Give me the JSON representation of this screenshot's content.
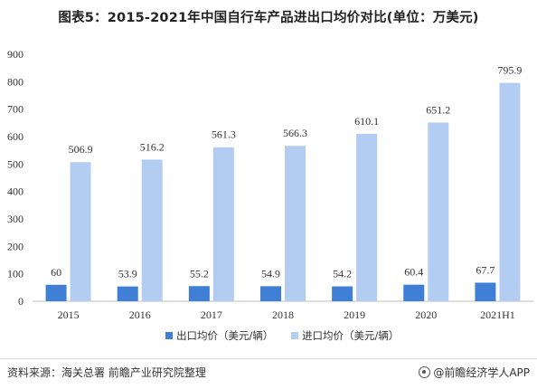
{
  "title": "图表5：2015-2021年中国自行车产品进出口均价对比(单位：万美元)",
  "footer": {
    "source": "资料来源：海关总署 前瞻产业研究院整理",
    "brand": "@前瞻经济学人APP"
  },
  "colors": {
    "export": "#3f7fd6",
    "import": "#b3cdf2",
    "axis": "#bfbfbf"
  },
  "chart_data": {
    "type": "bar",
    "categories": [
      "2015",
      "2016",
      "2017",
      "2018",
      "2019",
      "2020",
      "2021H1"
    ],
    "series": [
      {
        "name": "出口均价（美元/辆）",
        "values": [
          60,
          53.9,
          55.2,
          54.9,
          54.2,
          60.4,
          67.7
        ],
        "labels": [
          "60",
          "53.9",
          "55.2",
          "54.9",
          "54.2",
          "60.4",
          "67.7"
        ]
      },
      {
        "name": "进口均价（美元/辆）",
        "values": [
          506.9,
          516.2,
          561.3,
          566.3,
          610.1,
          651.2,
          795.9
        ],
        "labels": [
          "506.9",
          "516.2",
          "561.3",
          "566.3",
          "610.1",
          "651.2",
          "795.9"
        ]
      }
    ],
    "yticks": [
      0,
      100,
      200,
      300,
      400,
      500,
      600,
      700,
      800,
      900
    ],
    "ylim": [
      0,
      900
    ],
    "legend": "bottom"
  }
}
